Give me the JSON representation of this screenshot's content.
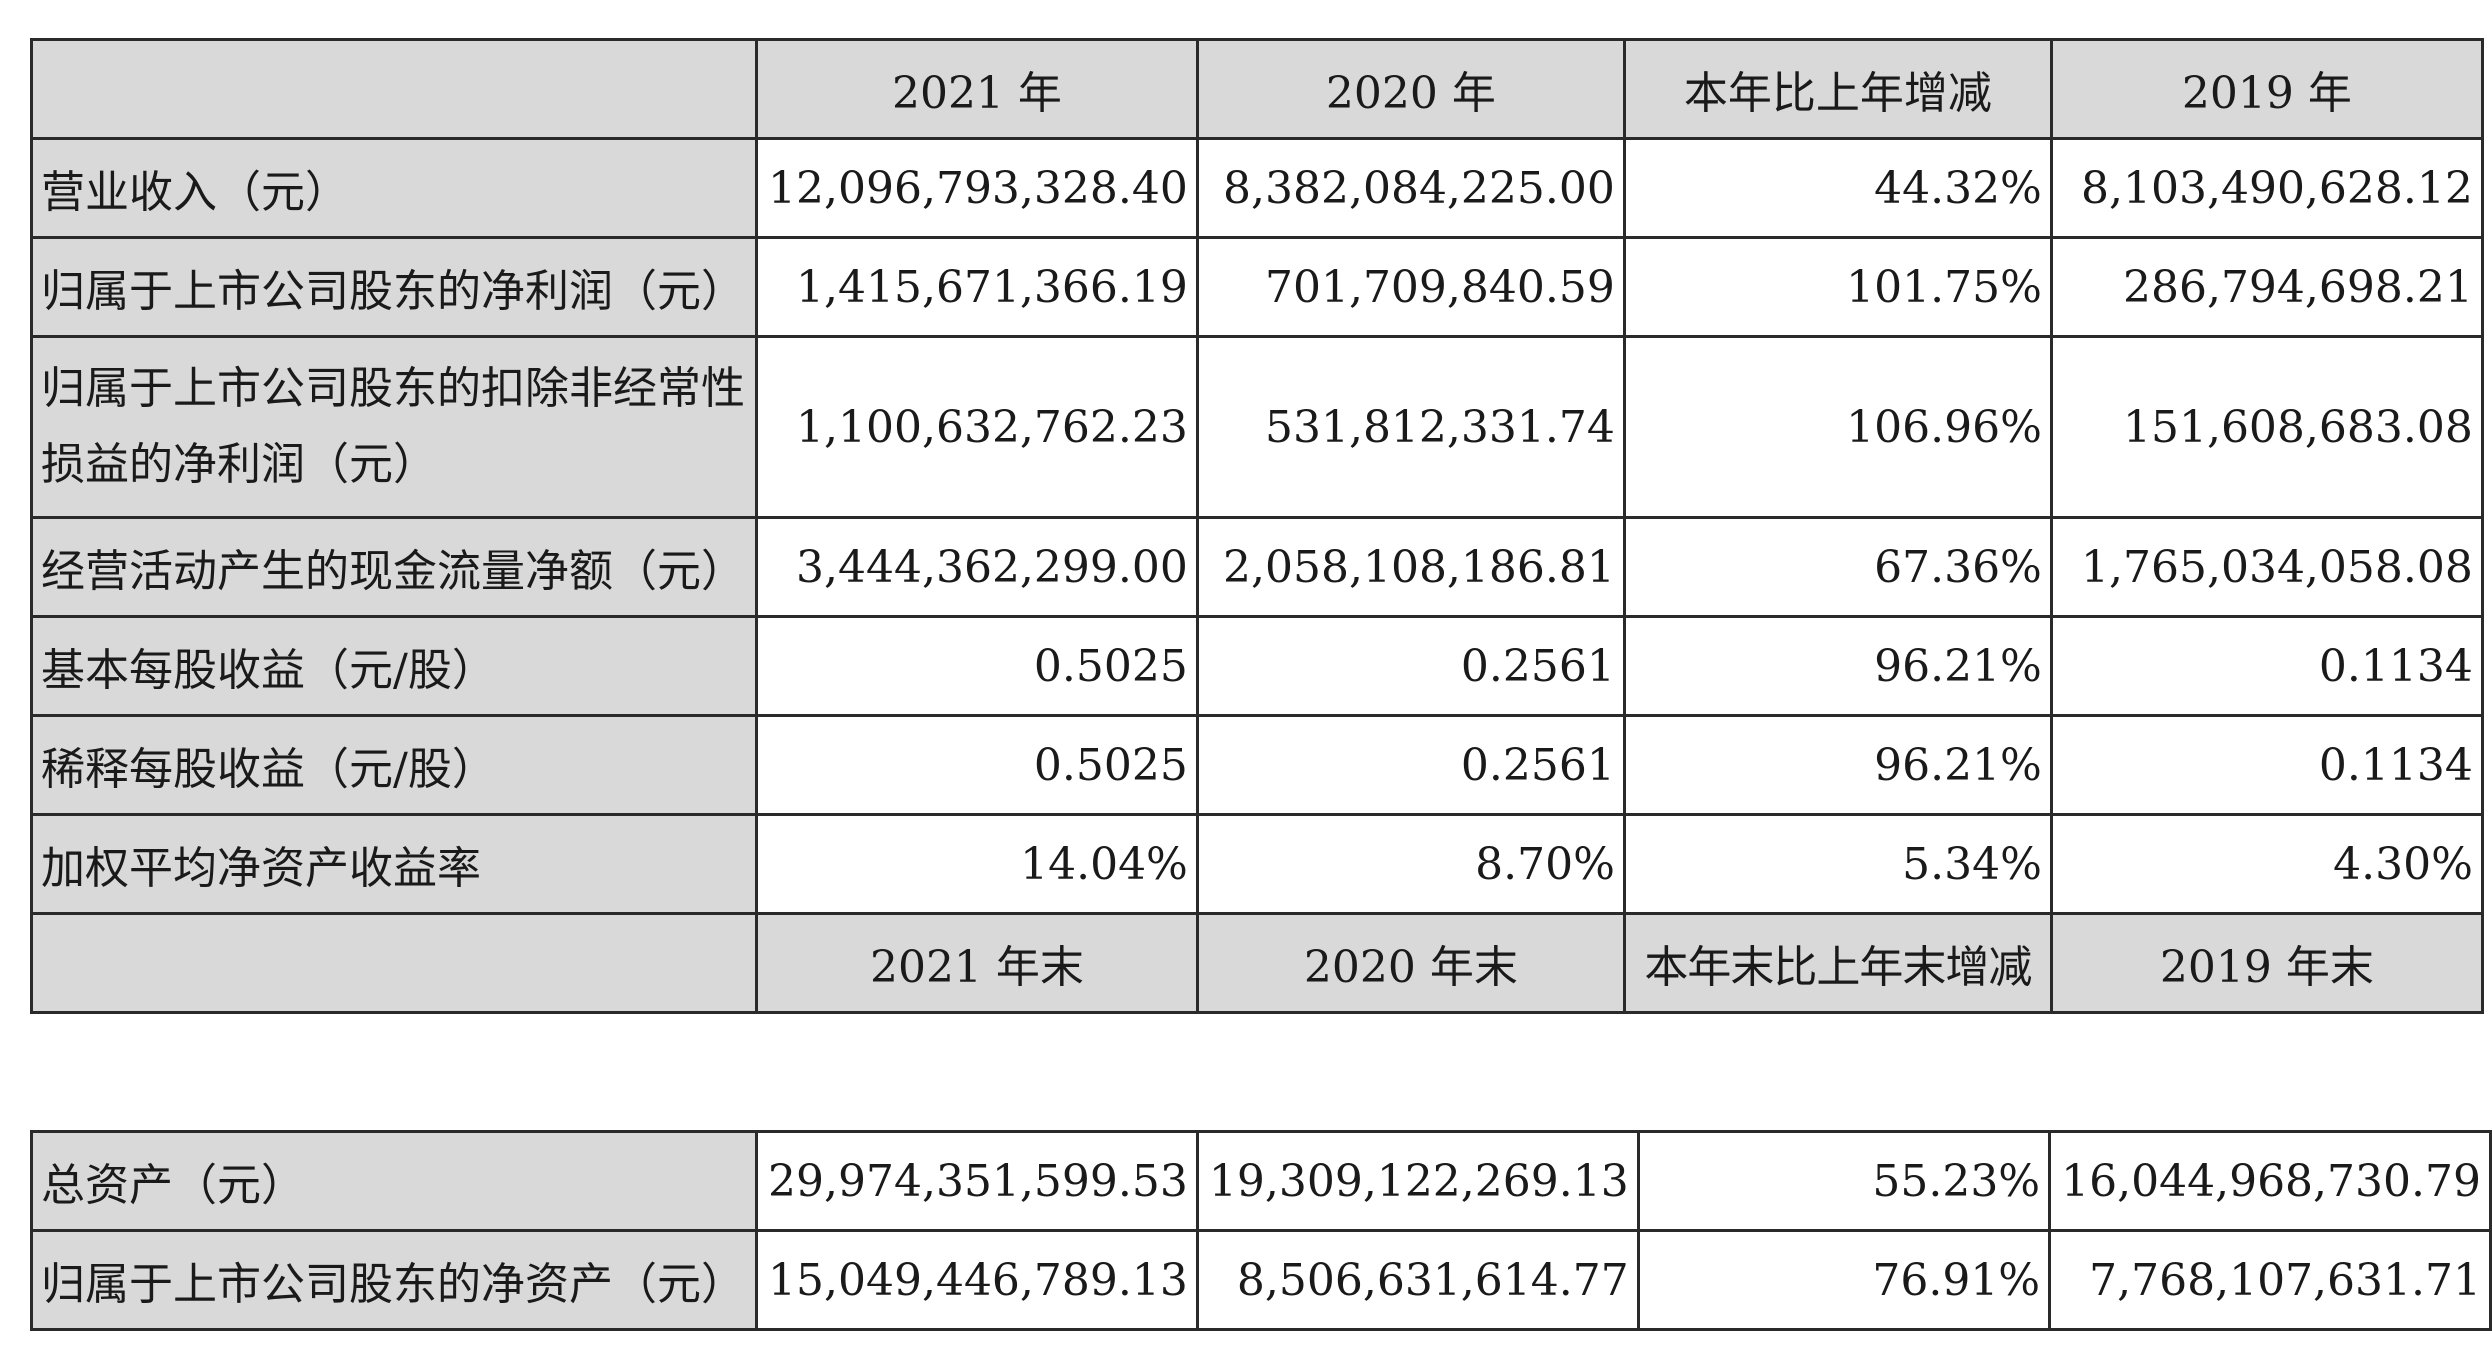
{
  "header": {
    "label": "",
    "cols": [
      "2021 年",
      "2020 年",
      "本年比上年增减",
      "2019 年"
    ]
  },
  "rows": [
    {
      "label": "营业收入（元）",
      "v2021": "12,096,793,328.40",
      "v2020": "8,382,084,225.00",
      "change": "44.32%",
      "v2019": "8,103,490,628.12"
    },
    {
      "label": "归属于上市公司股东的净利润（元）",
      "v2021": "1,415,671,366.19",
      "v2020": "701,709,840.59",
      "change": "101.75%",
      "v2019": "286,794,698.21"
    },
    {
      "label": "归属于上市公司股东的扣除非经常性损益的净利润（元）",
      "v2021": "1,100,632,762.23",
      "v2020": "531,812,331.74",
      "change": "106.96%",
      "v2019": "151,608,683.08"
    },
    {
      "label": "经营活动产生的现金流量净额（元）",
      "v2021": "3,444,362,299.00",
      "v2020": "2,058,108,186.81",
      "change": "67.36%",
      "v2019": "1,765,034,058.08"
    },
    {
      "label": "基本每股收益（元/股）",
      "v2021": "0.5025",
      "v2020": "0.2561",
      "change": "96.21%",
      "v2019": "0.1134"
    },
    {
      "label": "稀释每股收益（元/股）",
      "v2021": "0.5025",
      "v2020": "0.2561",
      "change": "96.21%",
      "v2019": "0.1134"
    },
    {
      "label": "加权平均净资产收益率",
      "v2021": "14.04%",
      "v2020": "8.70%",
      "change": "5.34%",
      "v2019": "4.30%"
    }
  ],
  "header_end": {
    "cols": [
      "2021 年末",
      "2020 年末",
      "本年末比上年末增减",
      "2019 年末"
    ]
  },
  "rows_end": [
    {
      "label": "总资产（元）",
      "v2021": "29,974,351,599.53",
      "v2020": "19,309,122,269.13",
      "change": "55.23%",
      "v2019": "16,044,968,730.79"
    },
    {
      "label": "归属于上市公司股东的净资产（元）",
      "v2021": "15,049,446,789.13",
      "v2020": "8,506,631,614.77",
      "change": "76.91%",
      "v2019": "7,768,107,631.71"
    }
  ]
}
